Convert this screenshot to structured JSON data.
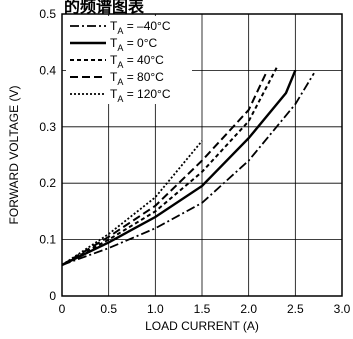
{
  "chart_data": {
    "type": "line",
    "title": "的频谱图表",
    "xlabel": "LOAD CURRENT (A)",
    "ylabel": "FORWARD VOLTAGE (V)",
    "xlim": [
      0,
      3.0
    ],
    "ylim": [
      0,
      0.5
    ],
    "x_ticks": [
      "0",
      "0.5",
      "1.0",
      "1.5",
      "2.0",
      "2.5",
      "3.0"
    ],
    "y_ticks": [
      "0",
      "0.1",
      "0.2",
      "0.3",
      "0.4",
      "0.5"
    ],
    "grid": true,
    "legend_position": "top-left",
    "series": [
      {
        "name": "T",
        "sub": "A",
        "value": " = –40°C",
        "dash": "dash-dot",
        "width": 1.8,
        "x": [
          0,
          0.5,
          1.0,
          1.5,
          2.0,
          2.5,
          2.7
        ],
        "y": [
          0.055,
          0.085,
          0.12,
          0.165,
          0.24,
          0.34,
          0.395
        ]
      },
      {
        "name": "T",
        "sub": "A",
        "value": " = 0°C",
        "dash": "solid",
        "width": 2.4,
        "x": [
          0,
          0.5,
          1.0,
          1.5,
          2.0,
          2.4,
          2.5
        ],
        "y": [
          0.055,
          0.095,
          0.14,
          0.195,
          0.28,
          0.36,
          0.4
        ]
      },
      {
        "name": "T",
        "sub": "A",
        "value": " = 40°C",
        "dash": "dotted",
        "width": 2.0,
        "x": [
          0,
          0.5,
          1.0,
          1.5,
          2.0,
          2.3
        ],
        "y": [
          0.055,
          0.1,
          0.15,
          0.22,
          0.31,
          0.405
        ]
      },
      {
        "name": "T",
        "sub": "A",
        "value": " = 80°C",
        "dash": "dashed",
        "width": 2.0,
        "x": [
          0,
          0.5,
          1.0,
          1.5,
          2.0,
          2.2
        ],
        "y": [
          0.055,
          0.105,
          0.16,
          0.24,
          0.33,
          0.4
        ]
      },
      {
        "name": "T",
        "sub": "A",
        "value": " = 120°C",
        "dash": "fine-dotted",
        "width": 1.8,
        "x": [
          0,
          0.5,
          1.0,
          1.5
        ],
        "y": [
          0.055,
          0.11,
          0.175,
          0.275
        ]
      }
    ]
  }
}
